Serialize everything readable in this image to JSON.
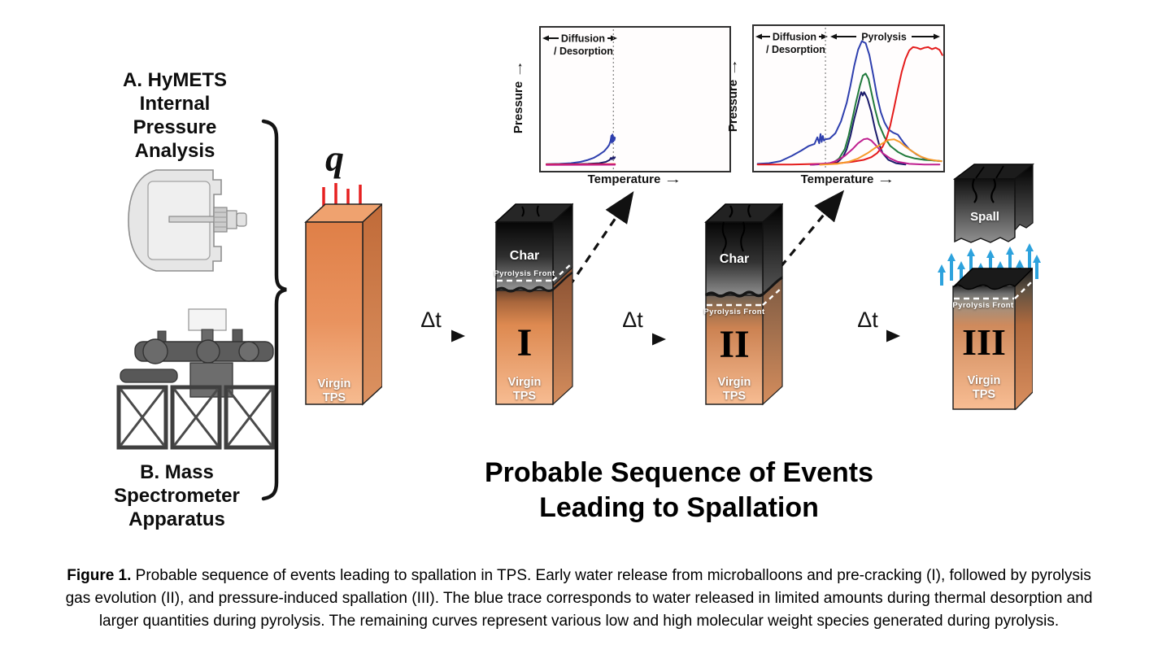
{
  "apparatus": {
    "a_label": "A. HyMETS\nInternal\nPressure\nAnalysis",
    "b_label": "B. Mass\nSpectrometer\nApparatus"
  },
  "sequence": {
    "heat_flux_symbol": "q",
    "delta_t": "Δt",
    "title_line1": "Probable Sequence of Events",
    "title_line2": "Leading to Spallation",
    "blocks": [
      {
        "name": "virgin-tps",
        "virgin_label": "Virgin\nTPS"
      },
      {
        "name": "stage-1",
        "numeral": "I",
        "char_label": "Char",
        "pyrolysis_front_label": "Pyrolysis Front",
        "virgin_label": "Virgin\nTPS"
      },
      {
        "name": "stage-2",
        "numeral": "II",
        "char_label": "Char",
        "pyrolysis_front_label": "Pyrolysis Front",
        "virgin_label": "Virgin\nTPS"
      },
      {
        "name": "stage-3",
        "numeral": "III",
        "spall_label": "Spall",
        "pyrolysis_front_label": "Pyrolysis Front",
        "virgin_label": "Virgin\nTPS"
      }
    ]
  },
  "charts": [
    {
      "ylabel": "Pressure",
      "xlabel": "Temperature",
      "region_left_line1": "Diffusion",
      "region_left_line2": "/ Desorption"
    },
    {
      "ylabel": "Pressure",
      "xlabel": "Temperature",
      "region_left_line1": "Diffusion",
      "region_left_line2": "/ Desorption",
      "region_right": "Pyrolysis"
    }
  ],
  "icons": {
    "right_arrow": "→"
  },
  "colors": {
    "tps_orange_top": "#df7f47",
    "tps_orange_bottom": "#f6bb90",
    "char_black": "#111111",
    "heat_flux_red": "#e62020",
    "spall_gas_blue": "#2da2dd",
    "water_blue": "#2e3fae",
    "navy": "#1b1b6b",
    "green": "#217a3c",
    "red": "#e41b1b",
    "magenta": "#bf1f8f",
    "orange": "#f79a2a"
  },
  "chart_data": [
    {
      "type": "line",
      "xlabel": "Temperature",
      "ylabel": "Pressure",
      "axis_ticks": "none (qualitative axes, arrows indicate increase)",
      "divider_x": 0.385,
      "regions": [
        {
          "label": "Diffusion / Desorption",
          "span": [
            0,
            0.385
          ]
        }
      ],
      "series": [
        {
          "name": "water (blue trace)",
          "color": "#2e3fae",
          "points": [
            [
              0.03,
              0.008
            ],
            [
              0.1,
              0.01
            ],
            [
              0.16,
              0.015
            ],
            [
              0.21,
              0.025
            ],
            [
              0.25,
              0.04
            ],
            [
              0.28,
              0.055
            ],
            [
              0.31,
              0.08
            ],
            [
              0.335,
              0.105
            ],
            [
              0.353,
              0.135
            ],
            [
              0.363,
              0.155
            ],
            [
              0.37,
              0.185
            ],
            [
              0.374,
              0.225
            ],
            [
              0.377,
              0.17
            ],
            [
              0.38,
              0.235
            ],
            [
              0.384,
              0.18
            ],
            [
              0.387,
              0.215
            ],
            [
              0.39,
              0.19
            ],
            [
              0.393,
              0.21
            ]
          ]
        },
        {
          "name": "species (navy)",
          "color": "#1b1b6b",
          "points": [
            [
              0.03,
              0.004
            ],
            [
              0.15,
              0.006
            ],
            [
              0.25,
              0.01
            ],
            [
              0.31,
              0.015
            ],
            [
              0.345,
              0.025
            ],
            [
              0.365,
              0.04
            ],
            [
              0.372,
              0.055
            ],
            [
              0.377,
              0.045
            ],
            [
              0.383,
              0.06
            ],
            [
              0.388,
              0.05
            ],
            [
              0.393,
              0.06
            ]
          ]
        },
        {
          "name": "species (red)",
          "color": "#e41b1b",
          "points": [
            [
              0.03,
              0.006
            ],
            [
              0.2,
              0.006
            ],
            [
              0.393,
              0.008
            ]
          ]
        },
        {
          "name": "species (magenta)",
          "color": "#bf1f8f",
          "points": [
            [
              0.03,
              0.002
            ],
            [
              0.393,
              0.003
            ]
          ]
        }
      ]
    },
    {
      "type": "line",
      "xlabel": "Temperature",
      "ylabel": "Pressure",
      "axis_ticks": "none (qualitative axes, arrows indicate increase)",
      "divider_x": 0.378,
      "regions": [
        {
          "label": "Diffusion / Desorption",
          "span": [
            0,
            0.378
          ]
        },
        {
          "label": "Pyrolysis",
          "span": [
            0.378,
            1
          ]
        }
      ],
      "series": [
        {
          "name": "water (blue trace)",
          "color": "#2e3fae",
          "points": [
            [
              0.02,
              0.01
            ],
            [
              0.08,
              0.015
            ],
            [
              0.14,
              0.03
            ],
            [
              0.2,
              0.07
            ],
            [
              0.25,
              0.11
            ],
            [
              0.29,
              0.145
            ],
            [
              0.32,
              0.16
            ],
            [
              0.335,
              0.21
            ],
            [
              0.345,
              0.165
            ],
            [
              0.352,
              0.235
            ],
            [
              0.358,
              0.175
            ],
            [
              0.364,
              0.22
            ],
            [
              0.37,
              0.185
            ],
            [
              0.378,
              0.195
            ],
            [
              0.4,
              0.2
            ],
            [
              0.43,
              0.24
            ],
            [
              0.46,
              0.33
            ],
            [
              0.49,
              0.47
            ],
            [
              0.51,
              0.6
            ],
            [
              0.53,
              0.75
            ],
            [
              0.55,
              0.87
            ],
            [
              0.57,
              0.935
            ],
            [
              0.59,
              0.92
            ],
            [
              0.61,
              0.83
            ],
            [
              0.63,
              0.68
            ],
            [
              0.65,
              0.52
            ],
            [
              0.67,
              0.4
            ],
            [
              0.69,
              0.32
            ],
            [
              0.71,
              0.27
            ],
            [
              0.735,
              0.245
            ],
            [
              0.76,
              0.23
            ],
            [
              0.79,
              0.17
            ],
            [
              0.82,
              0.12
            ],
            [
              0.86,
              0.08
            ],
            [
              0.9,
              0.05
            ],
            [
              0.95,
              0.035
            ],
            [
              0.99,
              0.03
            ]
          ]
        },
        {
          "name": "species (green)",
          "color": "#217a3c",
          "points": [
            [
              0.3,
              0.005
            ],
            [
              0.38,
              0.01
            ],
            [
              0.42,
              0.02
            ],
            [
              0.45,
              0.05
            ],
            [
              0.48,
              0.12
            ],
            [
              0.5,
              0.22
            ],
            [
              0.52,
              0.35
            ],
            [
              0.54,
              0.48
            ],
            [
              0.56,
              0.6
            ],
            [
              0.575,
              0.675
            ],
            [
              0.59,
              0.69
            ],
            [
              0.605,
              0.65
            ],
            [
              0.62,
              0.55
            ],
            [
              0.64,
              0.42
            ],
            [
              0.66,
              0.31
            ],
            [
              0.69,
              0.21
            ],
            [
              0.72,
              0.145
            ],
            [
              0.76,
              0.1
            ],
            [
              0.8,
              0.07
            ],
            [
              0.85,
              0.05
            ],
            [
              0.9,
              0.04
            ],
            [
              0.95,
              0.035
            ],
            [
              0.99,
              0.03
            ]
          ]
        },
        {
          "name": "species (navy)",
          "color": "#1b1b6b",
          "points": [
            [
              0.3,
              0.003
            ],
            [
              0.4,
              0.01
            ],
            [
              0.44,
              0.02
            ],
            [
              0.47,
              0.06
            ],
            [
              0.49,
              0.12
            ],
            [
              0.51,
              0.22
            ],
            [
              0.53,
              0.35
            ],
            [
              0.55,
              0.46
            ],
            [
              0.56,
              0.52
            ],
            [
              0.567,
              0.55
            ],
            [
              0.575,
              0.525
            ],
            [
              0.582,
              0.55
            ],
            [
              0.59,
              0.53
            ],
            [
              0.6,
              0.5
            ],
            [
              0.62,
              0.4
            ],
            [
              0.64,
              0.27
            ],
            [
              0.66,
              0.16
            ],
            [
              0.68,
              0.09
            ],
            [
              0.71,
              0.04
            ],
            [
              0.75,
              0.015
            ],
            [
              0.8,
              0.005
            ]
          ]
        },
        {
          "name": "species, high molecular weight (red)",
          "color": "#e41b1b",
          "points": [
            [
              0.02,
              0.005
            ],
            [
              0.2,
              0.005
            ],
            [
              0.35,
              0.01
            ],
            [
              0.45,
              0.015
            ],
            [
              0.52,
              0.025
            ],
            [
              0.58,
              0.04
            ],
            [
              0.62,
              0.06
            ],
            [
              0.65,
              0.09
            ],
            [
              0.68,
              0.14
            ],
            [
              0.7,
              0.2
            ],
            [
              0.72,
              0.3
            ],
            [
              0.74,
              0.43
            ],
            [
              0.76,
              0.57
            ],
            [
              0.78,
              0.7
            ],
            [
              0.8,
              0.8
            ],
            [
              0.82,
              0.865
            ],
            [
              0.84,
              0.89
            ],
            [
              0.86,
              0.885
            ],
            [
              0.88,
              0.875
            ],
            [
              0.9,
              0.885
            ],
            [
              0.92,
              0.89
            ],
            [
              0.94,
              0.875
            ],
            [
              0.96,
              0.885
            ],
            [
              0.98,
              0.87
            ],
            [
              0.995,
              0.83
            ]
          ]
        },
        {
          "name": "species (magenta)",
          "color": "#bf1f8f",
          "points": [
            [
              0.3,
              0.003
            ],
            [
              0.4,
              0.015
            ],
            [
              0.44,
              0.035
            ],
            [
              0.48,
              0.07
            ],
            [
              0.52,
              0.12
            ],
            [
              0.55,
              0.165
            ],
            [
              0.58,
              0.195
            ],
            [
              0.6,
              0.2
            ],
            [
              0.62,
              0.185
            ],
            [
              0.65,
              0.14
            ],
            [
              0.68,
              0.09
            ],
            [
              0.72,
              0.05
            ],
            [
              0.76,
              0.025
            ],
            [
              0.82,
              0.01
            ],
            [
              0.9,
              0.005
            ],
            [
              0.98,
              0.005
            ]
          ]
        },
        {
          "name": "species (orange)",
          "color": "#f79a2a",
          "points": [
            [
              0.35,
              0.003
            ],
            [
              0.44,
              0.01
            ],
            [
              0.5,
              0.025
            ],
            [
              0.55,
              0.05
            ],
            [
              0.6,
              0.09
            ],
            [
              0.64,
              0.13
            ],
            [
              0.68,
              0.165
            ],
            [
              0.71,
              0.19
            ],
            [
              0.74,
              0.195
            ],
            [
              0.77,
              0.175
            ],
            [
              0.8,
              0.14
            ],
            [
              0.84,
              0.1
            ],
            [
              0.88,
              0.065
            ],
            [
              0.92,
              0.045
            ],
            [
              0.96,
              0.035
            ],
            [
              0.99,
              0.03
            ]
          ]
        }
      ]
    }
  ],
  "caption": {
    "figure_label": "Figure 1.",
    "line1_rest": " Probable sequence of events leading to spallation in TPS. Early water release from microballoons and pre-cracking (I), followed by pyrolysis",
    "line2": "gas evolution (II), and pressure-induced spallation (III). The blue trace corresponds to water released in limited amounts during thermal desorption and",
    "line3": "larger quantities during pyrolysis. The remaining curves represent various low and high molecular weight species generated during pyrolysis."
  }
}
